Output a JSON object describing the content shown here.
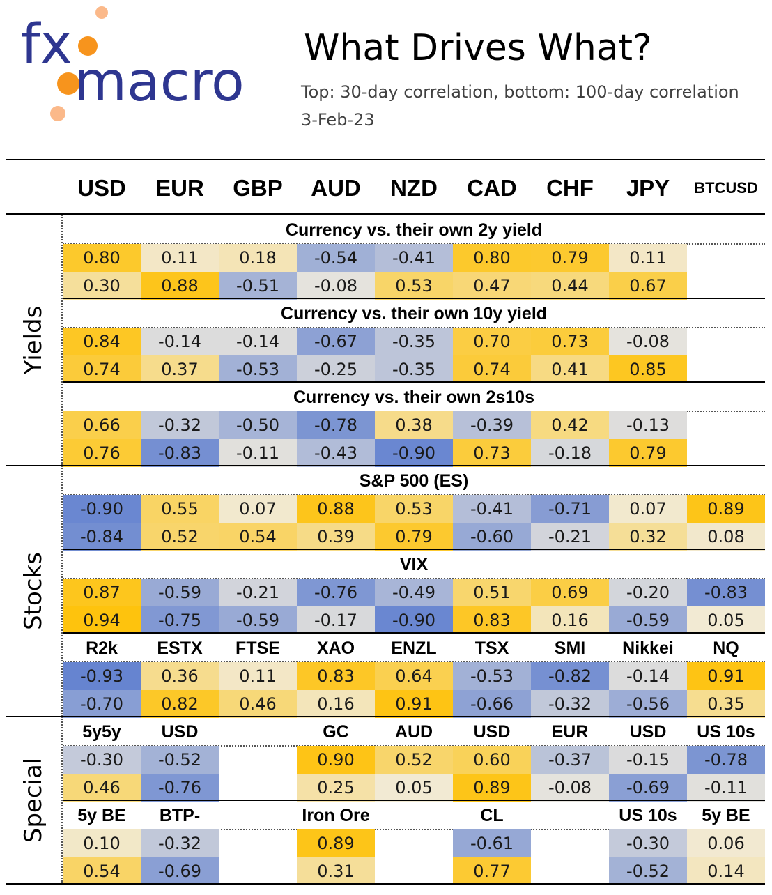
{
  "logo": {
    "text_fx": "fx",
    "text_macro": "macro",
    "colors": {
      "navy": "#2e3690",
      "orange": "#f7941d",
      "light_orange": "#fbb98a"
    }
  },
  "title": "What Drives What?",
  "subtitle": "Top: 30-day correlation, bottom: 100-day correlation",
  "date": "3-Feb-23",
  "columns": [
    "USD",
    "EUR",
    "GBP",
    "AUD",
    "NZD",
    "CAD",
    "CHF",
    "JPY",
    "BTCUSD"
  ],
  "sections": [
    {
      "label": "Yields",
      "groups": [
        {
          "title": "Currency vs. their own 2y yield",
          "top": [
            0.8,
            0.11,
            0.18,
            -0.54,
            -0.41,
            0.8,
            0.79,
            0.11,
            null
          ],
          "bottom": [
            0.3,
            0.88,
            -0.51,
            -0.08,
            0.53,
            0.47,
            0.44,
            0.67,
            null
          ]
        },
        {
          "title": "Currency vs. their own 10y yield",
          "top": [
            0.84,
            -0.14,
            -0.14,
            -0.67,
            -0.35,
            0.7,
            0.73,
            -0.08,
            null
          ],
          "bottom": [
            0.74,
            0.37,
            -0.53,
            -0.25,
            -0.35,
            0.74,
            0.41,
            0.85,
            null
          ]
        },
        {
          "title": "Currency vs. their own 2s10s",
          "top": [
            0.66,
            -0.32,
            -0.5,
            -0.78,
            0.38,
            -0.39,
            0.42,
            -0.13,
            null
          ],
          "bottom": [
            0.76,
            -0.83,
            -0.11,
            -0.43,
            -0.9,
            0.73,
            -0.18,
            0.79,
            null
          ]
        }
      ]
    },
    {
      "label": "Stocks",
      "groups": [
        {
          "title": "S&P 500 (ES)",
          "top": [
            -0.9,
            0.55,
            0.07,
            0.88,
            0.53,
            -0.41,
            -0.71,
            0.07,
            0.89
          ],
          "bottom": [
            -0.84,
            0.52,
            0.54,
            0.39,
            0.79,
            -0.6,
            -0.21,
            0.32,
            0.08
          ]
        },
        {
          "title": "VIX",
          "top": [
            0.87,
            -0.59,
            -0.21,
            -0.76,
            -0.49,
            0.51,
            0.69,
            -0.2,
            -0.83
          ],
          "bottom": [
            0.94,
            -0.75,
            -0.59,
            -0.17,
            -0.9,
            0.83,
            0.16,
            -0.59,
            0.05
          ]
        },
        {
          "labels": [
            "R2k",
            "ESTX",
            "FTSE",
            "XAO",
            "ENZL",
            "TSX",
            "SMI",
            "Nikkei",
            "NQ"
          ],
          "top": [
            -0.93,
            0.36,
            0.11,
            0.83,
            0.64,
            -0.53,
            -0.82,
            -0.14,
            0.91
          ],
          "bottom": [
            -0.7,
            0.82,
            0.46,
            0.16,
            0.91,
            -0.66,
            -0.32,
            -0.56,
            0.35
          ]
        }
      ]
    },
    {
      "label": "Special",
      "groups": [
        {
          "labels": [
            "5y5y",
            "USD",
            "",
            "GC",
            "AUD",
            "USD",
            "EUR",
            "USD",
            "US 10s"
          ],
          "top": [
            -0.3,
            -0.52,
            null,
            0.9,
            0.52,
            0.6,
            -0.37,
            -0.15,
            -0.78
          ],
          "bottom": [
            0.46,
            -0.76,
            null,
            0.25,
            0.05,
            0.89,
            -0.08,
            -0.69,
            -0.11
          ]
        },
        {
          "labels": [
            "5y BE",
            "BTP-BND",
            "",
            "Iron Ore",
            "",
            "CL",
            "",
            "US 10s",
            "5y BE"
          ],
          "top": [
            0.1,
            -0.32,
            null,
            0.89,
            null,
            -0.61,
            null,
            -0.3,
            0.06
          ],
          "bottom": [
            0.54,
            -0.69,
            null,
            0.31,
            null,
            0.77,
            null,
            -0.52,
            0.14
          ]
        }
      ]
    }
  ],
  "chart_data": {
    "type": "heatmap",
    "title": "What Drives What?",
    "subtitle": "Top: 30-day correlation, bottom: 100-day correlation",
    "date": "3-Feb-23",
    "columns": [
      "USD",
      "EUR",
      "GBP",
      "AUD",
      "NZD",
      "CAD",
      "CHF",
      "JPY",
      "BTCUSD"
    ],
    "value_range": [
      -1,
      1
    ],
    "colors": {
      "positive": "#ffc000",
      "negative": "#5b7ccf",
      "neutral": "#f1ecde"
    }
  }
}
